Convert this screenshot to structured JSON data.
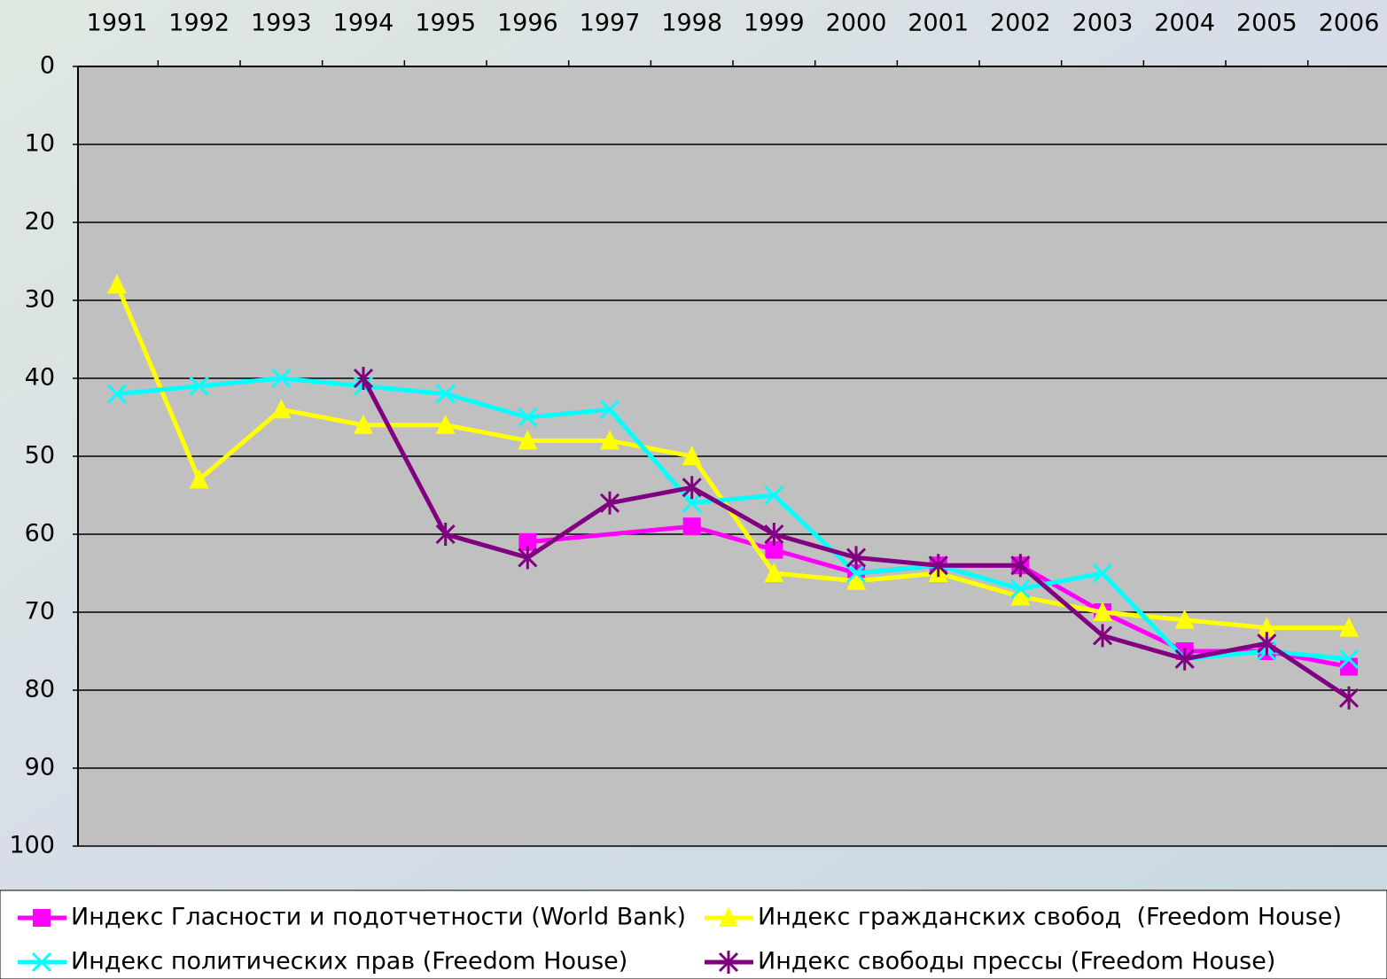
{
  "chart_data": {
    "type": "line",
    "categories": [
      "1991",
      "1992",
      "1993",
      "1994",
      "1995",
      "1996",
      "1997",
      "1998",
      "1999",
      "2000",
      "2001",
      "2002",
      "2003",
      "2004",
      "2005",
      "2006"
    ],
    "series": [
      {
        "name": "Индекс Гласности и подотчетности (World Bank)",
        "color": "#ff00ff",
        "marker": "square",
        "values": [
          null,
          null,
          null,
          null,
          null,
          61,
          null,
          59,
          62,
          65,
          64,
          64,
          70,
          75,
          75,
          77
        ]
      },
      {
        "name": "Индекс гражданских свобод  (Freedom House)",
        "color": "#ffff00",
        "marker": "triangle",
        "values": [
          28,
          53,
          44,
          46,
          46,
          48,
          48,
          50,
          65,
          66,
          65,
          68,
          70,
          71,
          72,
          72
        ]
      },
      {
        "name": "Индекс политических прав (Freedom House)",
        "color": "#00ffff",
        "marker": "x",
        "values": [
          42,
          41,
          40,
          41,
          42,
          45,
          44,
          56,
          55,
          65,
          64,
          67,
          65,
          76,
          75,
          76
        ]
      },
      {
        "name": "Индекс свободы прессы (Freedom House)",
        "color": "#800080",
        "marker": "star",
        "values": [
          null,
          null,
          null,
          40,
          60,
          63,
          56,
          54,
          60,
          63,
          64,
          64,
          73,
          76,
          74,
          81
        ]
      }
    ],
    "ylim": [
      0,
      100
    ],
    "yticks": [
      0,
      10,
      20,
      30,
      40,
      50,
      60,
      70,
      80,
      90,
      100
    ],
    "y_inverted": true,
    "x_axis_position": "top",
    "connect_gaps": true,
    "grid": true,
    "plot_background": "#c0c0c0",
    "legend": "bottom"
  }
}
